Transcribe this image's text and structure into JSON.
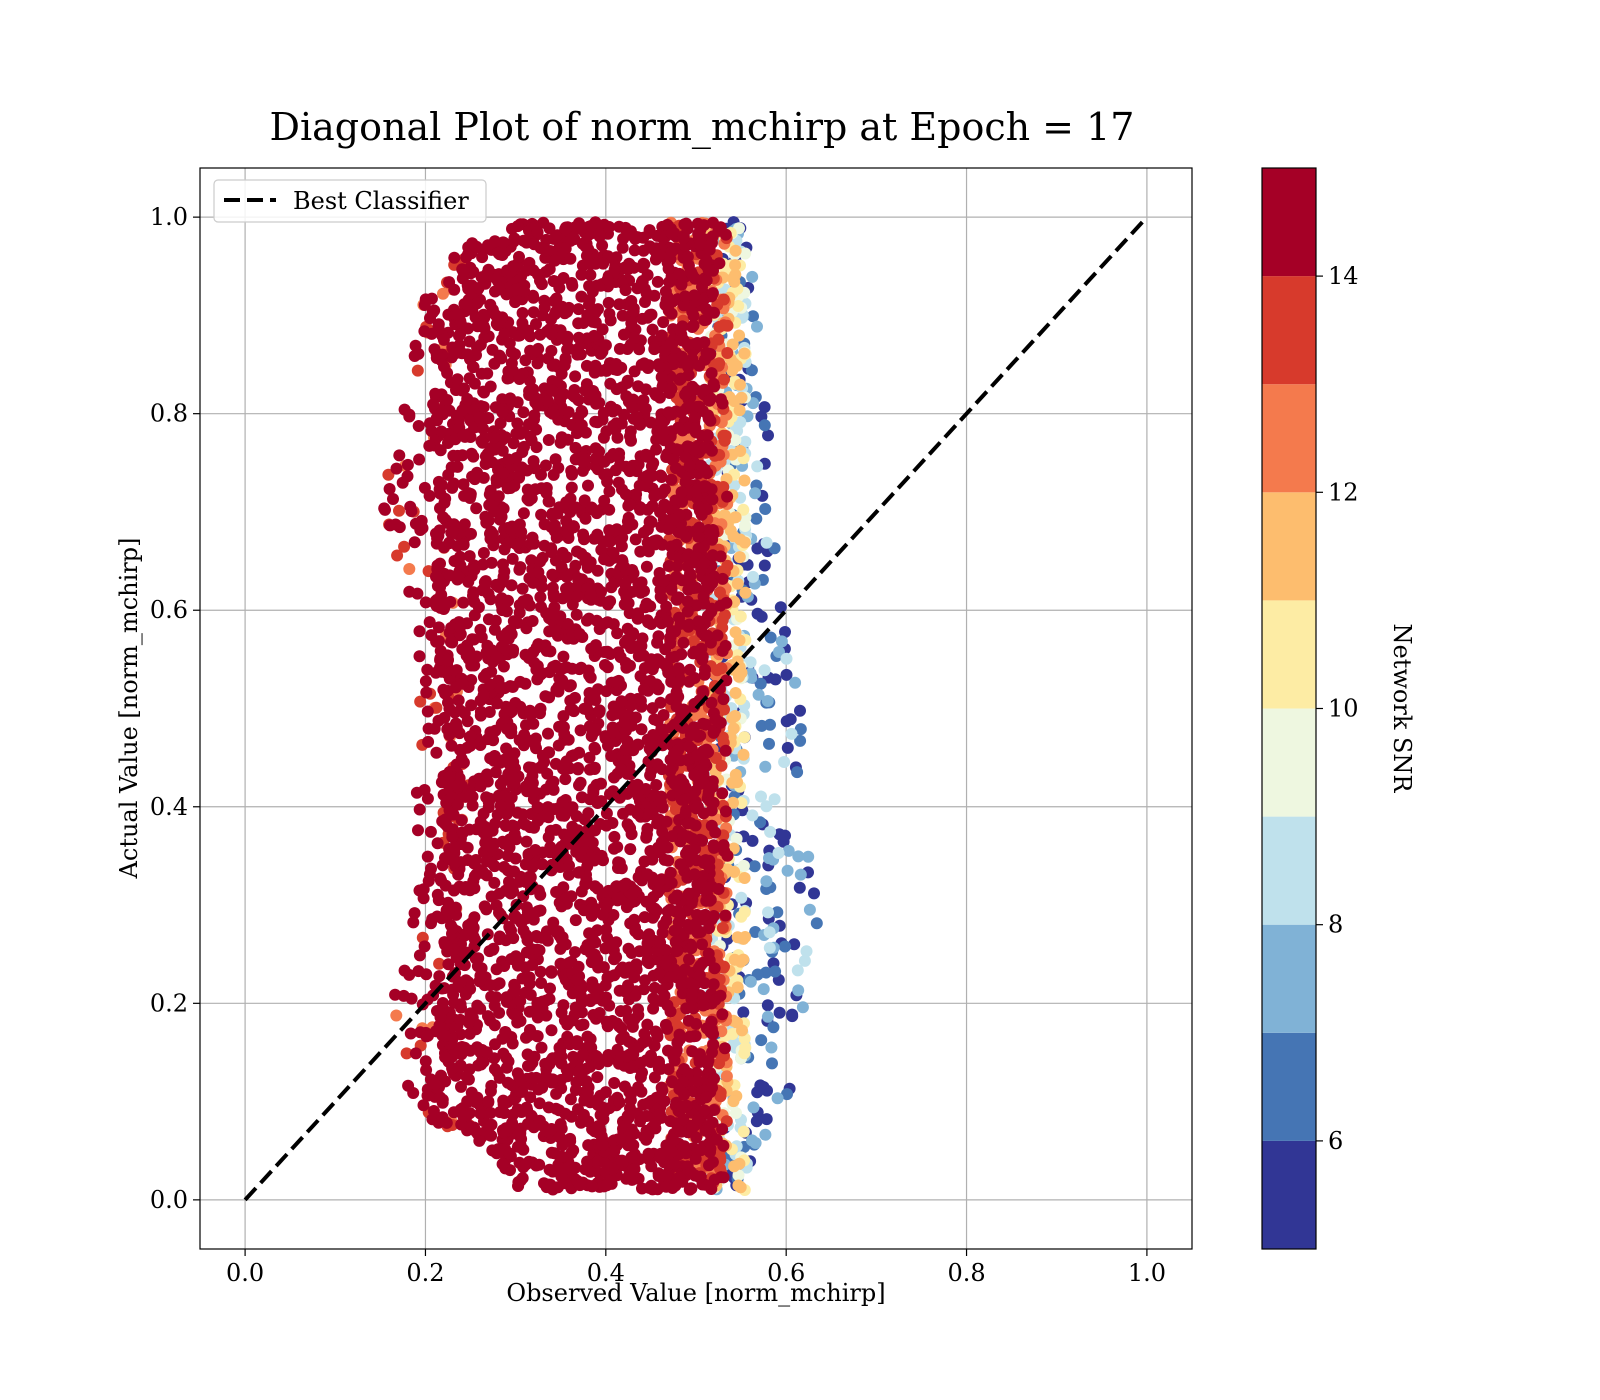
{
  "chart_data": {
    "type": "scatter",
    "title": "Diagonal Plot of norm_mchirp at Epoch = 17",
    "xlabel": "Observed Value [norm_mchirp]",
    "ylabel": "Actual Value [norm_mchirp]",
    "xlim": [
      -0.05,
      1.05
    ],
    "ylim": [
      -0.05,
      1.05
    ],
    "xticks": [
      "0.0",
      "0.2",
      "0.4",
      "0.6",
      "0.8",
      "1.0"
    ],
    "yticks": [
      "0.0",
      "0.2",
      "0.4",
      "0.6",
      "0.8",
      "1.0"
    ],
    "grid": true,
    "legend": {
      "placement": "top-left",
      "entries": [
        "Best Classifier"
      ]
    },
    "reference_line": {
      "name": "Best Classifier",
      "x": [
        0,
        1
      ],
      "y": [
        0,
        1
      ],
      "style": "dashed",
      "color": "#000000"
    },
    "colorbar": {
      "label": "Network SNR",
      "range": [
        5,
        15
      ],
      "ticks": [
        "6",
        "8",
        "10",
        "12",
        "14"
      ],
      "bins": [
        5,
        6,
        7,
        8,
        9,
        10,
        11,
        12,
        13,
        14,
        15
      ],
      "colors": [
        "#313695",
        "#4575b4",
        "#80b2d6",
        "#bfe1ec",
        "#eef7e0",
        "#fdeca4",
        "#fdbd6e",
        "#f47a4d",
        "#d73a2c",
        "#a50026"
      ]
    },
    "point_cloud": {
      "description_rows": [
        {
          "y": 0.98,
          "x_min": 0.22,
          "x_max": 0.56
        },
        {
          "y": 0.9,
          "x_min": 0.19,
          "x_max": 0.57
        },
        {
          "y": 0.8,
          "x_min": 0.17,
          "x_max": 0.58
        },
        {
          "y": 0.7,
          "x_min": 0.15,
          "x_max": 0.58
        },
        {
          "y": 0.6,
          "x_min": 0.18,
          "x_max": 0.6
        },
        {
          "y": 0.5,
          "x_min": 0.19,
          "x_max": 0.62
        },
        {
          "y": 0.4,
          "x_min": 0.19,
          "x_max": 0.61
        },
        {
          "y": 0.3,
          "x_min": 0.19,
          "x_max": 0.64
        },
        {
          "y": 0.2,
          "x_min": 0.16,
          "x_max": 0.63
        },
        {
          "y": 0.1,
          "x_min": 0.18,
          "x_max": 0.6
        },
        {
          "y": 0.02,
          "x_min": 0.27,
          "x_max": 0.55
        }
      ],
      "core_x_range": [
        0.23,
        0.52
      ],
      "dominant_snr": 15,
      "low_snr_edge_x_range": [
        0.52,
        0.64
      ]
    }
  }
}
